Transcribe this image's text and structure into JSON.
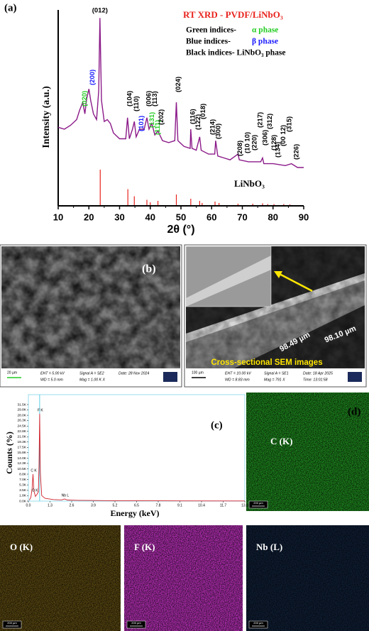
{
  "chart_data": [
    {
      "type": "line",
      "panel_label": "(a)",
      "title": "RT XRD - PVDF/LiNbO₃",
      "legend": [
        {
          "label": "Green indices-",
          "phase": "α phase",
          "color": "#22cc22"
        },
        {
          "label": "Blue  indices-",
          "phase": "β phase",
          "color": "#1a1aff"
        },
        {
          "label": "Black indices- LiNbO₃ phase",
          "phase": null,
          "color": "#000000"
        }
      ],
      "x_label": "2θ (°)",
      "y_label": "Intensity (a.u.)",
      "xlim": [
        10,
        90
      ],
      "xticks": [
        10,
        20,
        30,
        40,
        50,
        60,
        70,
        80,
        90
      ],
      "ylim": [
        0,
        100
      ],
      "color": "#8b1a89",
      "x": [
        10,
        12,
        14,
        16,
        17,
        18,
        18.7,
        19.3,
        20,
        20.6,
        21.5,
        22.5,
        23.2,
        23.6,
        24.1,
        25,
        26,
        27,
        28,
        30,
        32,
        32.6,
        33.2,
        34.2,
        34.8,
        35.4,
        36.5,
        38,
        38.9,
        39.6,
        40.5,
        41.5,
        42.5,
        44,
        46,
        48,
        48.5,
        49,
        51,
        53,
        53.2,
        53.6,
        55,
        56.1,
        56.6,
        59,
        61,
        61.3,
        62,
        64,
        66,
        68.6,
        69,
        72,
        76,
        76.6,
        77,
        80,
        84,
        86,
        88,
        90
      ],
      "values": [
        41,
        40,
        42,
        45,
        50,
        54,
        48,
        56,
        61,
        55,
        48,
        45,
        60,
        98,
        55,
        44,
        45,
        43,
        38,
        35,
        35,
        46,
        35,
        40,
        44,
        36,
        40,
        40,
        46,
        40,
        43,
        37,
        39,
        34,
        33,
        34,
        54,
        34,
        31,
        30,
        40,
        30,
        29,
        36,
        29,
        27,
        27,
        34,
        26,
        25,
        24,
        27,
        24,
        23,
        23,
        25,
        22,
        22,
        21,
        22,
        20,
        20
      ],
      "reference": {
        "name": "LiNbO₃",
        "color": "#e8231d",
        "x": [
          23.7,
          32.7,
          34.8,
          38.9,
          40.0,
          42.5,
          48.5,
          53.2,
          56.1,
          56.9,
          61.1,
          62.4,
          68.6,
          73.4,
          76.6,
          78.3,
          80.3,
          83.5,
          85.5
        ],
        "values": [
          100,
          45,
          25,
          15,
          8,
          12,
          30,
          18,
          12,
          6,
          10,
          6,
          4,
          4,
          5,
          3,
          3,
          3,
          2
        ]
      },
      "annotations": [
        {
          "text": "(020)",
          "x": 18,
          "color": "#22cc22"
        },
        {
          "text": "(200)",
          "x": 20.5,
          "color": "#1a1aff"
        },
        {
          "text": "(012)",
          "x": 23.6,
          "color": "#000000"
        },
        {
          "text": "(104)",
          "x": 32.7,
          "color": "#000000"
        },
        {
          "text": "(110)",
          "x": 34.8,
          "color": "#000000"
        },
        {
          "text": "(101)",
          "x": 36.5,
          "color": "#1a1aff"
        },
        {
          "text": "(006)",
          "x": 38.9,
          "color": "#000000"
        },
        {
          "text": "(131)",
          "x": 39.9,
          "color": "#22cc22"
        },
        {
          "text": "(113)",
          "x": 40.9,
          "color": "#000000"
        },
        {
          "text": "(111)",
          "x": 41.8,
          "color": "#22cc22"
        },
        {
          "text": "(202)",
          "x": 43.0,
          "color": "#000000"
        },
        {
          "text": "(024)",
          "x": 48.5,
          "color": "#000000"
        },
        {
          "text": "(116)",
          "x": 53.2,
          "color": "#000000"
        },
        {
          "text": "(122)",
          "x": 55.0,
          "color": "#000000"
        },
        {
          "text": "(018)",
          "x": 56.6,
          "color": "#000000"
        },
        {
          "text": "(214)",
          "x": 59.7,
          "color": "#000000"
        },
        {
          "text": "(300)",
          "x": 61.5,
          "color": "#000000"
        },
        {
          "text": "(208)",
          "x": 68.6,
          "color": "#000000"
        },
        {
          "text": "(10 10)",
          "x": 71.0,
          "color": "#000000"
        },
        {
          "text": "(220)",
          "x": 73.4,
          "color": "#000000"
        },
        {
          "text": "(217)",
          "x": 75.2,
          "color": "#000000"
        },
        {
          "text": "(306)",
          "x": 76.8,
          "color": "#000000"
        },
        {
          "text": "(312)",
          "x": 78.3,
          "color": "#000000"
        },
        {
          "text": "(128)",
          "x": 79.7,
          "color": "#000000"
        },
        {
          "text": "(134)",
          "x": 81.0,
          "color": "#000000"
        },
        {
          "text": "(00 12)",
          "x": 82.7,
          "color": "#000000"
        },
        {
          "text": "(315)",
          "x": 84.7,
          "color": "#000000"
        },
        {
          "text": "(226)",
          "x": 87.0,
          "color": "#000000"
        }
      ]
    },
    {
      "type": "line",
      "panel_label": "(c)",
      "x_label": "Energy (keV)",
      "y_label": "Counts (%)",
      "xlim": [
        0,
        13
      ],
      "ylim": [
        0,
        31500
      ],
      "color": "#d0202a",
      "xticks": [
        {
          "value": 0,
          "label": "0.0"
        },
        1.3,
        2.6,
        3.9,
        5.2,
        6.5,
        7.8,
        9.1,
        10.4,
        11.7,
        {
          "value": 13,
          "label": "13.0"
        }
      ],
      "yticks": [
        {
          "value": 0,
          "label": "0.0K"
        },
        {
          "value": 1800,
          "label": "1.8K"
        },
        {
          "value": 3500,
          "label": "3.5K"
        },
        {
          "value": 5300,
          "label": "5.3K"
        },
        {
          "value": 7000,
          "label": "7.0K"
        },
        {
          "value": 8800,
          "label": "8.8K"
        },
        {
          "value": 10500,
          "label": "10.5K"
        },
        {
          "value": 12300,
          "label": "12.3K"
        },
        {
          "value": 14000,
          "label": "14.0K"
        },
        {
          "value": 15800,
          "label": "15.8K"
        },
        {
          "value": 17500,
          "label": "17.5K"
        },
        {
          "value": 19300,
          "label": "19.3K"
        },
        {
          "value": 21000,
          "label": "21.0K"
        },
        {
          "value": 22800,
          "label": "22.8K"
        },
        {
          "value": 24500,
          "label": "24.5K"
        },
        {
          "value": 26300,
          "label": "26.3K"
        },
        {
          "value": 28000,
          "label": "28.0K"
        },
        {
          "value": 29800,
          "label": "29.8K"
        },
        {
          "value": 31500,
          "label": "31.5K"
        }
      ],
      "x": [
        0.05,
        0.15,
        0.22,
        0.277,
        0.33,
        0.42,
        0.525,
        0.6,
        0.64,
        0.677,
        0.72,
        0.8,
        1.0,
        1.5,
        2.0,
        2.17,
        2.35,
        3.0,
        5.0,
        8.0,
        13.0
      ],
      "values": [
        300,
        1200,
        4000,
        8800,
        3500,
        1500,
        2300,
        3000,
        12000,
        28500,
        9000,
        1800,
        900,
        500,
        400,
        700,
        350,
        250,
        150,
        100,
        50
      ],
      "annotations": [
        {
          "text": "C K",
          "x": 0.277
        },
        {
          "text": "O K",
          "x": 0.525
        },
        {
          "text": "F K",
          "x": 0.677
        },
        {
          "text": "Nb L",
          "x": 2.17
        }
      ]
    }
  ],
  "panel_b": {
    "label": "(b)",
    "left": {
      "scale": "20 µm",
      "info": [
        "EHT = 5.00 kV",
        "WD = 5.0 mm",
        "Signal A = SE2",
        "Mag = 1.00 K X",
        "Date: 28 Nov 2024"
      ]
    },
    "right": {
      "scale": "100 µm",
      "info": [
        "EHT = 10.00 kV",
        "WD = 8.83 mm",
        "Signal A = SE1",
        "Mag = 791 X",
        "Date: 18 Apr 2025",
        "Time: 13:01:58"
      ],
      "measurements": [
        "98.10 µm",
        "98.49 µm"
      ],
      "caption": "Cross-sectional SEM images"
    }
  },
  "maps": [
    {
      "panel_label": "(d)",
      "label": "C (K)",
      "scale": "200 µm",
      "color": "#1f8a1f"
    },
    {
      "panel_label": null,
      "label": "O (K)",
      "scale": "200 µm",
      "color": "#5c4a12"
    },
    {
      "panel_label": null,
      "label": "F (K)",
      "scale": "200 µm",
      "color": "#b830b8"
    },
    {
      "panel_label": null,
      "label": "Nb (L)",
      "scale": "200 µm",
      "color": "#102038"
    }
  ]
}
